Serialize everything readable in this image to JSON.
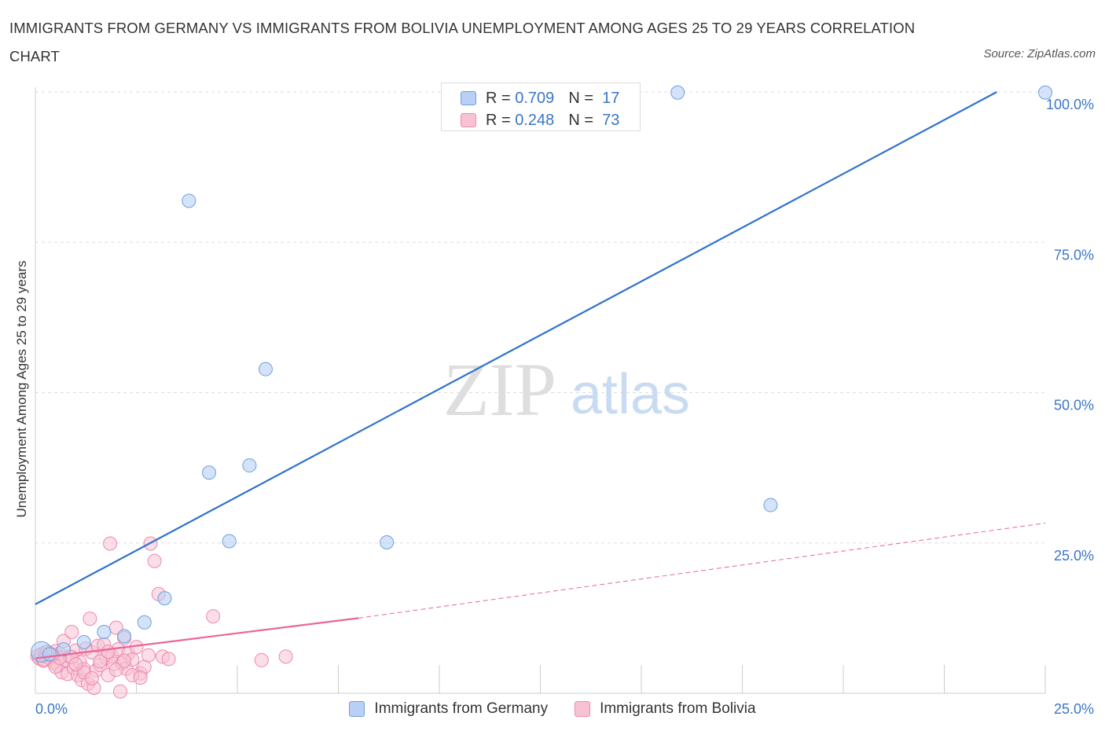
{
  "title": "IMMIGRANTS FROM GERMANY VS IMMIGRANTS FROM BOLIVIA UNEMPLOYMENT AMONG AGES 25 TO 29 YEARS CORRELATION CHART",
  "source": "Source: ZipAtlas.com",
  "watermark": {
    "zip": "ZIP",
    "atlas": "atlas"
  },
  "legend": {
    "germany": {
      "r_label": "R =",
      "r_value": "0.709",
      "n_label": "N =",
      "n_value": "17"
    },
    "bolivia": {
      "r_label": "R =",
      "r_value": "0.248",
      "n_label": "N =",
      "n_value": "73"
    }
  },
  "bottom_legend": {
    "germany": "Immigrants from Germany",
    "bolivia": "Immigrants from Bolivia"
  },
  "colors": {
    "germany_fill": "#b7d0f4",
    "germany_stroke": "#6f9fe0",
    "germany_line": "#2f72cf",
    "bolivia_fill": "#f7c2d3",
    "bolivia_stroke": "#ec8aab",
    "bolivia_line": "#e8669a",
    "tick_label": "#3a76c8",
    "grid": "#dddddd"
  },
  "chart_data": {
    "type": "scatter",
    "title": "IMMIGRANTS FROM GERMANY VS IMMIGRANTS FROM BOLIVIA UNEMPLOYMENT AMONG AGES 25 TO 29 YEARS CORRELATION CHART",
    "xlabel": "",
    "ylabel": "Unemployment Among Ages 25 to 29 years",
    "xlim": [
      0,
      25
    ],
    "ylim": [
      0,
      100
    ],
    "x_tick_labels": [
      "0.0%",
      "25.0%"
    ],
    "y_ticks": [
      25,
      50,
      75,
      100
    ],
    "y_tick_labels": [
      "25.0%",
      "50.0%",
      "75.0%",
      "100.0%"
    ],
    "grid": true,
    "series": [
      {
        "name": "Immigrants from Germany",
        "R": 0.709,
        "N": 17,
        "trend": {
          "x": [
            0,
            23.8
          ],
          "y": [
            14.8,
            100
          ]
        },
        "points": [
          {
            "x": 0.15,
            "y": 6.9
          },
          {
            "x": 0.35,
            "y": 6.5
          },
          {
            "x": 0.7,
            "y": 7.3
          },
          {
            "x": 1.2,
            "y": 8.5
          },
          {
            "x": 1.7,
            "y": 10.2
          },
          {
            "x": 2.2,
            "y": 9.5
          },
          {
            "x": 2.7,
            "y": 11.8
          },
          {
            "x": 3.2,
            "y": 15.8
          },
          {
            "x": 3.8,
            "y": 81.9
          },
          {
            "x": 4.3,
            "y": 36.7
          },
          {
            "x": 4.8,
            "y": 25.3
          },
          {
            "x": 5.3,
            "y": 37.9
          },
          {
            "x": 5.7,
            "y": 53.9
          },
          {
            "x": 8.7,
            "y": 25.1
          },
          {
            "x": 15.9,
            "y": 99.9
          },
          {
            "x": 18.2,
            "y": 31.3
          },
          {
            "x": 25.0,
            "y": 99.9
          }
        ]
      },
      {
        "name": "Immigrants from Bolivia",
        "R": 0.248,
        "N": 73,
        "trend": {
          "x": [
            0,
            8
          ],
          "y": [
            5.8,
            12.5
          ]
        },
        "trend_extended": {
          "x": [
            8,
            25
          ],
          "y": [
            12.5,
            28.3
          ]
        },
        "points": [
          {
            "x": 0.05,
            "y": 6.2
          },
          {
            "x": 0.1,
            "y": 5.8
          },
          {
            "x": 0.15,
            "y": 6.5
          },
          {
            "x": 0.2,
            "y": 5.4
          },
          {
            "x": 0.25,
            "y": 6.8
          },
          {
            "x": 0.3,
            "y": 6.0
          },
          {
            "x": 0.35,
            "y": 5.9
          },
          {
            "x": 0.4,
            "y": 6.3
          },
          {
            "x": 0.45,
            "y": 5.1
          },
          {
            "x": 0.5,
            "y": 7.0
          },
          {
            "x": 0.55,
            "y": 4.6
          },
          {
            "x": 0.6,
            "y": 6.6
          },
          {
            "x": 0.65,
            "y": 3.5
          },
          {
            "x": 0.7,
            "y": 8.7
          },
          {
            "x": 0.75,
            "y": 5.5
          },
          {
            "x": 0.8,
            "y": 3.2
          },
          {
            "x": 0.85,
            "y": 6.1
          },
          {
            "x": 0.9,
            "y": 10.2
          },
          {
            "x": 0.95,
            "y": 4.2
          },
          {
            "x": 1.0,
            "y": 7.1
          },
          {
            "x": 1.05,
            "y": 3.0
          },
          {
            "x": 1.1,
            "y": 5.2
          },
          {
            "x": 1.15,
            "y": 2.2
          },
          {
            "x": 1.2,
            "y": 4.0
          },
          {
            "x": 1.25,
            "y": 7.4
          },
          {
            "x": 1.3,
            "y": 1.6
          },
          {
            "x": 1.35,
            "y": 12.4
          },
          {
            "x": 1.4,
            "y": 6.8
          },
          {
            "x": 1.45,
            "y": 0.9
          },
          {
            "x": 1.5,
            "y": 3.8
          },
          {
            "x": 1.55,
            "y": 7.9
          },
          {
            "x": 1.6,
            "y": 4.7
          },
          {
            "x": 1.7,
            "y": 8.1
          },
          {
            "x": 1.75,
            "y": 5.9
          },
          {
            "x": 1.8,
            "y": 3.0
          },
          {
            "x": 1.85,
            "y": 24.9
          },
          {
            "x": 1.9,
            "y": 6.2
          },
          {
            "x": 1.95,
            "y": 4.9
          },
          {
            "x": 2.0,
            "y": 10.9
          },
          {
            "x": 2.05,
            "y": 7.3
          },
          {
            "x": 2.1,
            "y": 0.3
          },
          {
            "x": 2.15,
            "y": 5.0
          },
          {
            "x": 2.2,
            "y": 9.2
          },
          {
            "x": 2.25,
            "y": 4.1
          },
          {
            "x": 2.3,
            "y": 6.6
          },
          {
            "x": 2.4,
            "y": 5.6
          },
          {
            "x": 2.5,
            "y": 7.7
          },
          {
            "x": 2.6,
            "y": 3.3
          },
          {
            "x": 2.7,
            "y": 4.4
          },
          {
            "x": 2.8,
            "y": 6.3
          },
          {
            "x": 2.85,
            "y": 24.9
          },
          {
            "x": 2.95,
            "y": 22.0
          },
          {
            "x": 3.05,
            "y": 16.5
          },
          {
            "x": 3.15,
            "y": 6.1
          },
          {
            "x": 3.3,
            "y": 5.7
          },
          {
            "x": 0.5,
            "y": 4.4
          },
          {
            "x": 0.9,
            "y": 6.0
          },
          {
            "x": 1.2,
            "y": 3.5
          },
          {
            "x": 1.6,
            "y": 5.3
          },
          {
            "x": 2.0,
            "y": 3.9
          },
          {
            "x": 2.4,
            "y": 3.0
          },
          {
            "x": 0.3,
            "y": 6.9
          },
          {
            "x": 0.6,
            "y": 5.9
          },
          {
            "x": 1.0,
            "y": 4.8
          },
          {
            "x": 1.4,
            "y": 2.5
          },
          {
            "x": 1.8,
            "y": 6.9
          },
          {
            "x": 2.2,
            "y": 5.4
          },
          {
            "x": 2.6,
            "y": 2.6
          },
          {
            "x": 4.4,
            "y": 12.8
          },
          {
            "x": 5.6,
            "y": 5.5
          },
          {
            "x": 6.2,
            "y": 6.1
          },
          {
            "x": 0.2,
            "y": 5.6
          },
          {
            "x": 0.4,
            "y": 6.4
          }
        ]
      }
    ]
  }
}
